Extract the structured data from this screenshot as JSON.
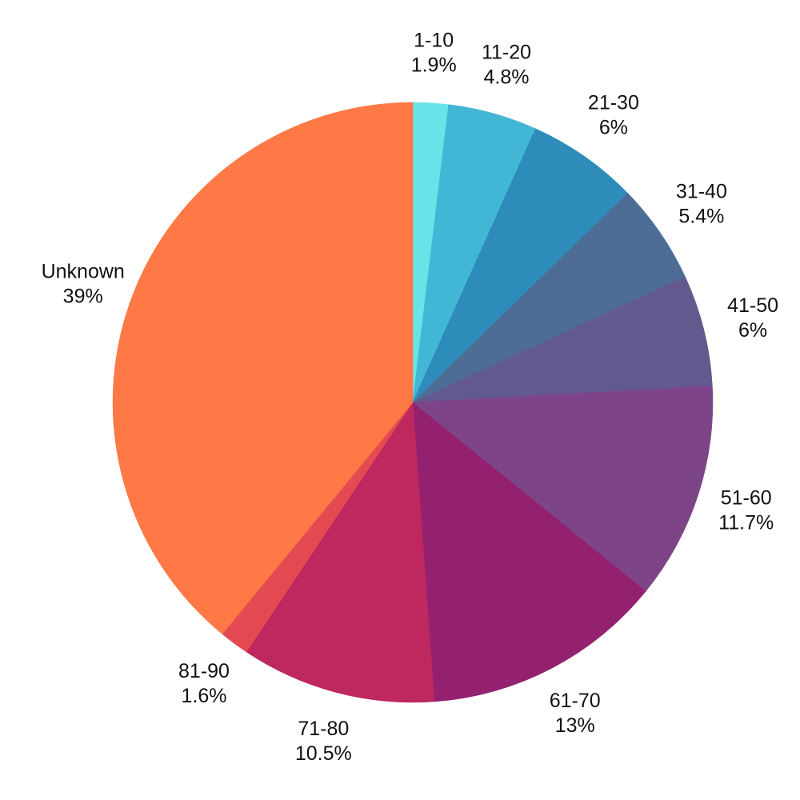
{
  "chart_data": {
    "type": "pie",
    "title": "",
    "slices": [
      {
        "label": "1-10",
        "value": 1.9,
        "value_label": "1.9%",
        "color": "#6ae3e8"
      },
      {
        "label": "11-20",
        "value": 4.8,
        "value_label": "4.8%",
        "color": "#42b6d5"
      },
      {
        "label": "21-30",
        "value": 6,
        "value_label": "6%",
        "color": "#2e8cba"
      },
      {
        "label": "31-40",
        "value": 5.4,
        "value_label": "5.4%",
        "color": "#4e6d96"
      },
      {
        "label": "41-50",
        "value": 6,
        "value_label": "6%",
        "color": "#625a8e"
      },
      {
        "label": "51-60",
        "value": 11.7,
        "value_label": "11.7%",
        "color": "#7d4588"
      },
      {
        "label": "61-70",
        "value": 13,
        "value_label": "13%",
        "color": "#93216f"
      },
      {
        "label": "71-80",
        "value": 10.5,
        "value_label": "10.5%",
        "color": "#be285f"
      },
      {
        "label": "81-90",
        "value": 1.6,
        "value_label": "1.6%",
        "color": "#e44a52"
      },
      {
        "label": "Unknown",
        "value": 39,
        "value_label": "39%",
        "color": "#fe7945"
      }
    ],
    "start": "top",
    "direction": "clockwise",
    "legend": "none"
  }
}
